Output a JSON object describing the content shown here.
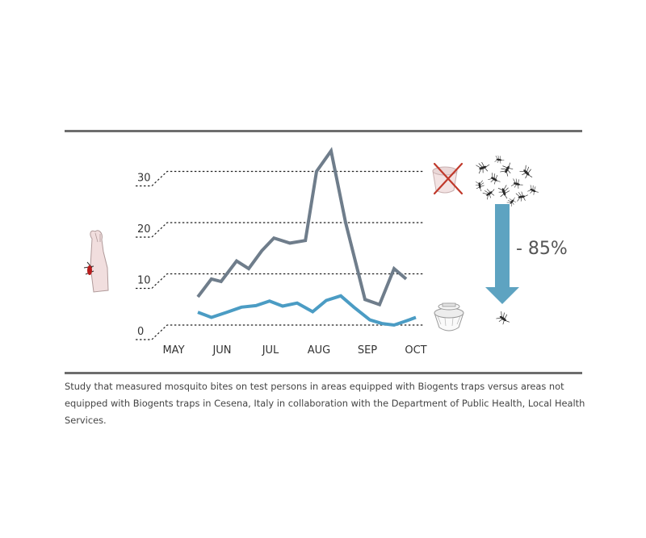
{
  "colors": {
    "untreated": "#6f7d8b",
    "treated": "#4b9cc4",
    "arrow": "#5ea3c1",
    "rule": "#6d6d6d",
    "guide": "#222222",
    "cross": "#c0392b"
  },
  "icons": {
    "arm": "bitten-arm-icon",
    "crossed_trap": "crossed-out-trap-icon",
    "swarm": "mosquito-swarm-icon",
    "trap": "biogents-trap-icon",
    "single": "single-mosquito-icon"
  },
  "reduction_label": "- 85%",
  "caption": "Study that measured mosquito bites on test persons in areas equipped with Biogents traps versus areas not equipped with Biogents traps in Cesena, Italy in collaboration with the Department of Public Health, Local Health Services.",
  "chart_data": {
    "type": "line",
    "title": "",
    "xlabel": "",
    "ylabel": "",
    "categories": [
      "MAY",
      "JUN",
      "JUL",
      "AUG",
      "SEP",
      "OCT"
    ],
    "x_range": [
      0,
      5
    ],
    "yticks": [
      0,
      10,
      20,
      30
    ],
    "ylim": [
      0,
      30
    ],
    "grid": "dotted horizontal at tick values",
    "series": [
      {
        "key": "untreated",
        "x": [
          0.5,
          0.78,
          0.98,
          1.3,
          1.55,
          1.82,
          2.07,
          2.4,
          2.72,
          2.95,
          3.25,
          3.55,
          3.95,
          4.25,
          4.55,
          4.8
        ],
        "values": [
          5.5,
          9,
          8.5,
          12.5,
          11,
          14.5,
          17,
          16,
          16.5,
          30,
          34,
          20,
          5,
          4,
          11,
          9
        ]
      },
      {
        "key": "treated",
        "x": [
          0.5,
          0.78,
          1.1,
          1.4,
          1.7,
          1.98,
          2.25,
          2.55,
          2.87,
          3.15,
          3.45,
          3.72,
          4.05,
          4.3,
          4.55,
          4.8,
          5.0
        ],
        "values": [
          2.5,
          1.5,
          2.5,
          3.5,
          3.8,
          4.7,
          3.7,
          4.3,
          2.6,
          4.8,
          5.7,
          3.5,
          1,
          0.3,
          0,
          0.8,
          1.5
        ]
      }
    ]
  }
}
